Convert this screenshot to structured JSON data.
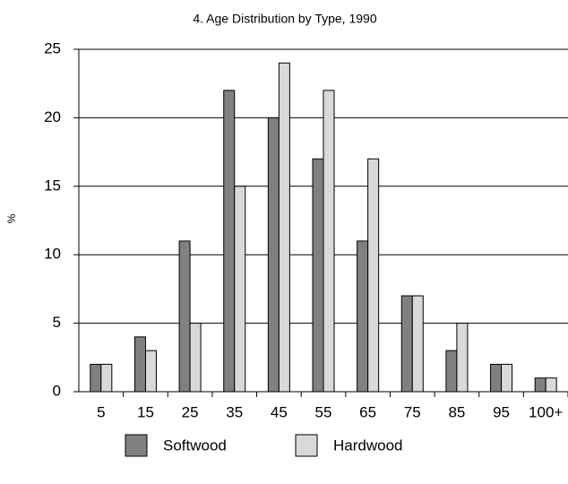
{
  "chart_data": {
    "type": "bar",
    "title": "4.  Age Distribution by Type, 1990",
    "y_label": "%",
    "categories": [
      "5",
      "15",
      "25",
      "35",
      "45",
      "55",
      "65",
      "75",
      "85",
      "95",
      "100+"
    ],
    "series": [
      {
        "name": "Softwood",
        "color": "#808080",
        "values": [
          2,
          4,
          11,
          22,
          20,
          17,
          11,
          7,
          3,
          2,
          1
        ]
      },
      {
        "name": "Hardwood",
        "color": "#d9d9d9",
        "values": [
          2,
          3,
          5,
          15,
          24,
          22,
          17,
          7,
          5,
          2,
          1
        ]
      }
    ],
    "ylim": [
      0,
      25
    ],
    "yticks": [
      0,
      5,
      10,
      15,
      20,
      25
    ],
    "grid": true,
    "legend": "bottom"
  }
}
